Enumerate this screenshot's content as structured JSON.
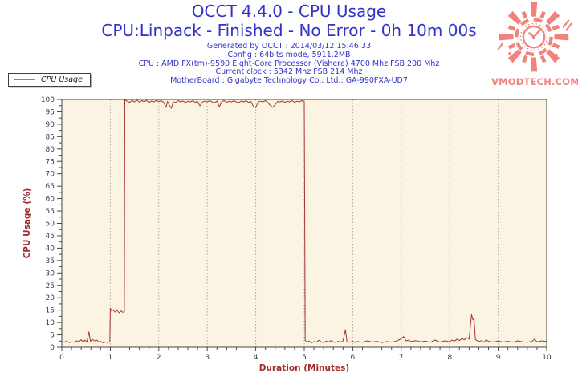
{
  "header": {
    "title_line1": "OCCT 4.4.0 - CPU Usage",
    "title_line2": "CPU:Linpack - Finished - No Error - 0h 10m 00s",
    "info_lines": [
      "Generated by OCCT : 2014/03/12 15:46:33",
      "Config : 64bits mode, 5911.2MB",
      "CPU : AMD FX(tm)-9590 Eight-Core Processor (Vishera) 4700 Mhz FSB 200 Mhz",
      "Current clock : 5342 Mhz FSB 214 Mhz",
      "MotherBoard : Gigabyte Technology Co., Ltd.: GA-990FXA-UD7"
    ]
  },
  "legend": {
    "label": "CPU Usage"
  },
  "logo": {
    "text": "VMODTECH.COM"
  },
  "colors": {
    "text_blue": "#3232C8",
    "series_red": "#A93434",
    "legend_line_red": "#C66A6A",
    "axis_title_red": "#A32B2B",
    "plot_background": "#FBF4E2",
    "gridline_gray": "#A9A89B",
    "logo_salmon": "#F0837B"
  },
  "chart_data": {
    "type": "line",
    "title": "CPU Usage",
    "xlabel": "Duration (Minutes)",
    "ylabel": "CPU Usage (%)",
    "xlim": [
      0,
      10
    ],
    "ylim": [
      0,
      100
    ],
    "x_major_step": 1,
    "x_minor_step": 0.2,
    "y_major_step": 5,
    "y_minor_step": 2.5,
    "grid": "vertical-dotted-at-each-minute",
    "legend_position": "top-left-outside",
    "plot_bg": "#FBF4E2",
    "grid_color": "#A9A89B",
    "axis_color": "#4a463e",
    "series": [
      {
        "name": "CPU Usage",
        "color": "#A93434",
        "points": [
          [
            0,
            2.3
          ],
          [
            0.05,
            2.1
          ],
          [
            0.1,
            2.4
          ],
          [
            0.15,
            1.9
          ],
          [
            0.2,
            2.2
          ],
          [
            0.25,
            2.0
          ],
          [
            0.3,
            2.6
          ],
          [
            0.35,
            2.2
          ],
          [
            0.4,
            3.0
          ],
          [
            0.44,
            2.3
          ],
          [
            0.48,
            2.8
          ],
          [
            0.52,
            2.2
          ],
          [
            0.56,
            6.2
          ],
          [
            0.59,
            2.4
          ],
          [
            0.63,
            3.2
          ],
          [
            0.67,
            2.6
          ],
          [
            0.72,
            2.9
          ],
          [
            0.76,
            2.1
          ],
          [
            0.8,
            2.4
          ],
          [
            0.85,
            1.8
          ],
          [
            0.9,
            2.1
          ],
          [
            0.95,
            1.9
          ],
          [
            0.99,
            2.2
          ],
          [
            1.0,
            15.8
          ],
          [
            1.03,
            14.6
          ],
          [
            1.06,
            15.1
          ],
          [
            1.1,
            14.2
          ],
          [
            1.14,
            14.9
          ],
          [
            1.18,
            13.9
          ],
          [
            1.22,
            14.7
          ],
          [
            1.26,
            14.1
          ],
          [
            1.29,
            14.4
          ],
          [
            1.3,
            99.8
          ],
          [
            1.35,
            99.3
          ],
          [
            1.4,
            98.8
          ],
          [
            1.45,
            99.6
          ],
          [
            1.5,
            99.0
          ],
          [
            1.55,
            99.7
          ],
          [
            1.6,
            98.9
          ],
          [
            1.65,
            99.5
          ],
          [
            1.7,
            99.1
          ],
          [
            1.75,
            99.6
          ],
          [
            1.8,
            98.7
          ],
          [
            1.85,
            99.4
          ],
          [
            1.9,
            99.0
          ],
          [
            1.95,
            99.6
          ],
          [
            2.0,
            99.1
          ],
          [
            2.05,
            99.5
          ],
          [
            2.1,
            98.8
          ],
          [
            2.15,
            96.8
          ],
          [
            2.18,
            99.2
          ],
          [
            2.22,
            97.6
          ],
          [
            2.26,
            96.4
          ],
          [
            2.3,
            99.1
          ],
          [
            2.35,
            98.8
          ],
          [
            2.4,
            99.5
          ],
          [
            2.45,
            99.0
          ],
          [
            2.5,
            99.4
          ],
          [
            2.55,
            98.7
          ],
          [
            2.6,
            99.3
          ],
          [
            2.65,
            99.0
          ],
          [
            2.7,
            99.5
          ],
          [
            2.75,
            98.8
          ],
          [
            2.8,
            99.2
          ],
          [
            2.85,
            97.4
          ],
          [
            2.9,
            99.0
          ],
          [
            2.95,
            99.3
          ],
          [
            3.0,
            99.0
          ],
          [
            3.05,
            99.5
          ],
          [
            3.1,
            99.0
          ],
          [
            3.15,
            98.6
          ],
          [
            3.2,
            99.4
          ],
          [
            3.25,
            97.0
          ],
          [
            3.3,
            99.2
          ],
          [
            3.35,
            99.5
          ],
          [
            3.4,
            98.8
          ],
          [
            3.45,
            99.3
          ],
          [
            3.5,
            99.0
          ],
          [
            3.55,
            99.5
          ],
          [
            3.6,
            99.0
          ],
          [
            3.65,
            98.7
          ],
          [
            3.7,
            99.4
          ],
          [
            3.75,
            99.0
          ],
          [
            3.8,
            99.5
          ],
          [
            3.85,
            98.8
          ],
          [
            3.9,
            99.2
          ],
          [
            3.95,
            97.2
          ],
          [
            4.0,
            96.7
          ],
          [
            4.05,
            99.0
          ],
          [
            4.1,
            99.3
          ],
          [
            4.15,
            99.0
          ],
          [
            4.2,
            99.5
          ],
          [
            4.25,
            98.7
          ],
          [
            4.3,
            97.6
          ],
          [
            4.35,
            96.8
          ],
          [
            4.4,
            97.9
          ],
          [
            4.45,
            99.2
          ],
          [
            4.5,
            99.0
          ],
          [
            4.55,
            99.4
          ],
          [
            4.6,
            98.8
          ],
          [
            4.65,
            99.3
          ],
          [
            4.7,
            99.0
          ],
          [
            4.75,
            99.5
          ],
          [
            4.8,
            98.8
          ],
          [
            4.85,
            99.3
          ],
          [
            4.9,
            99.0
          ],
          [
            4.95,
            99.5
          ],
          [
            5.0,
            99.2
          ],
          [
            5.02,
            2.8
          ],
          [
            5.06,
            1.9
          ],
          [
            5.1,
            2.5
          ],
          [
            5.15,
            1.8
          ],
          [
            5.2,
            2.3
          ],
          [
            5.25,
            2.0
          ],
          [
            5.3,
            2.8
          ],
          [
            5.35,
            2.2
          ],
          [
            5.4,
            1.9
          ],
          [
            5.45,
            2.5
          ],
          [
            5.5,
            2.1
          ],
          [
            5.55,
            2.7
          ],
          [
            5.6,
            2.2
          ],
          [
            5.65,
            1.9
          ],
          [
            5.7,
            2.4
          ],
          [
            5.75,
            2.0
          ],
          [
            5.8,
            2.6
          ],
          [
            5.85,
            7.1
          ],
          [
            5.88,
            2.3
          ],
          [
            5.93,
            2.0
          ],
          [
            6.0,
            2.4
          ],
          [
            6.05,
            1.9
          ],
          [
            6.1,
            2.3
          ],
          [
            6.2,
            2.0
          ],
          [
            6.3,
            2.6
          ],
          [
            6.4,
            2.1
          ],
          [
            6.5,
            2.4
          ],
          [
            6.6,
            1.9
          ],
          [
            6.7,
            2.3
          ],
          [
            6.8,
            2.0
          ],
          [
            6.9,
            2.5
          ],
          [
            7.0,
            3.4
          ],
          [
            7.05,
            4.3
          ],
          [
            7.1,
            2.6
          ],
          [
            7.15,
            2.9
          ],
          [
            7.2,
            2.3
          ],
          [
            7.3,
            2.7
          ],
          [
            7.4,
            2.2
          ],
          [
            7.5,
            2.5
          ],
          [
            7.6,
            2.0
          ],
          [
            7.7,
            2.9
          ],
          [
            7.75,
            2.4
          ],
          [
            7.8,
            2.1
          ],
          [
            7.9,
            2.6
          ],
          [
            8.0,
            2.2
          ],
          [
            8.05,
            2.9
          ],
          [
            8.1,
            2.5
          ],
          [
            8.15,
            3.3
          ],
          [
            8.2,
            2.7
          ],
          [
            8.25,
            3.6
          ],
          [
            8.3,
            3.0
          ],
          [
            8.35,
            3.9
          ],
          [
            8.4,
            3.3
          ],
          [
            8.45,
            13.2
          ],
          [
            8.48,
            11.0
          ],
          [
            8.5,
            12.0
          ],
          [
            8.53,
            3.1
          ],
          [
            8.6,
            2.3
          ],
          [
            8.65,
            2.7
          ],
          [
            8.7,
            2.0
          ],
          [
            8.75,
            3.0
          ],
          [
            8.8,
            2.4
          ],
          [
            8.9,
            2.1
          ],
          [
            9.0,
            2.5
          ],
          [
            9.1,
            2.1
          ],
          [
            9.2,
            2.4
          ],
          [
            9.3,
            2.0
          ],
          [
            9.4,
            2.6
          ],
          [
            9.5,
            2.2
          ],
          [
            9.6,
            2.0
          ],
          [
            9.7,
            2.4
          ],
          [
            9.75,
            3.3
          ],
          [
            9.8,
            2.2
          ],
          [
            9.9,
            2.6
          ],
          [
            10.0,
            2.3
          ]
        ]
      }
    ]
  }
}
